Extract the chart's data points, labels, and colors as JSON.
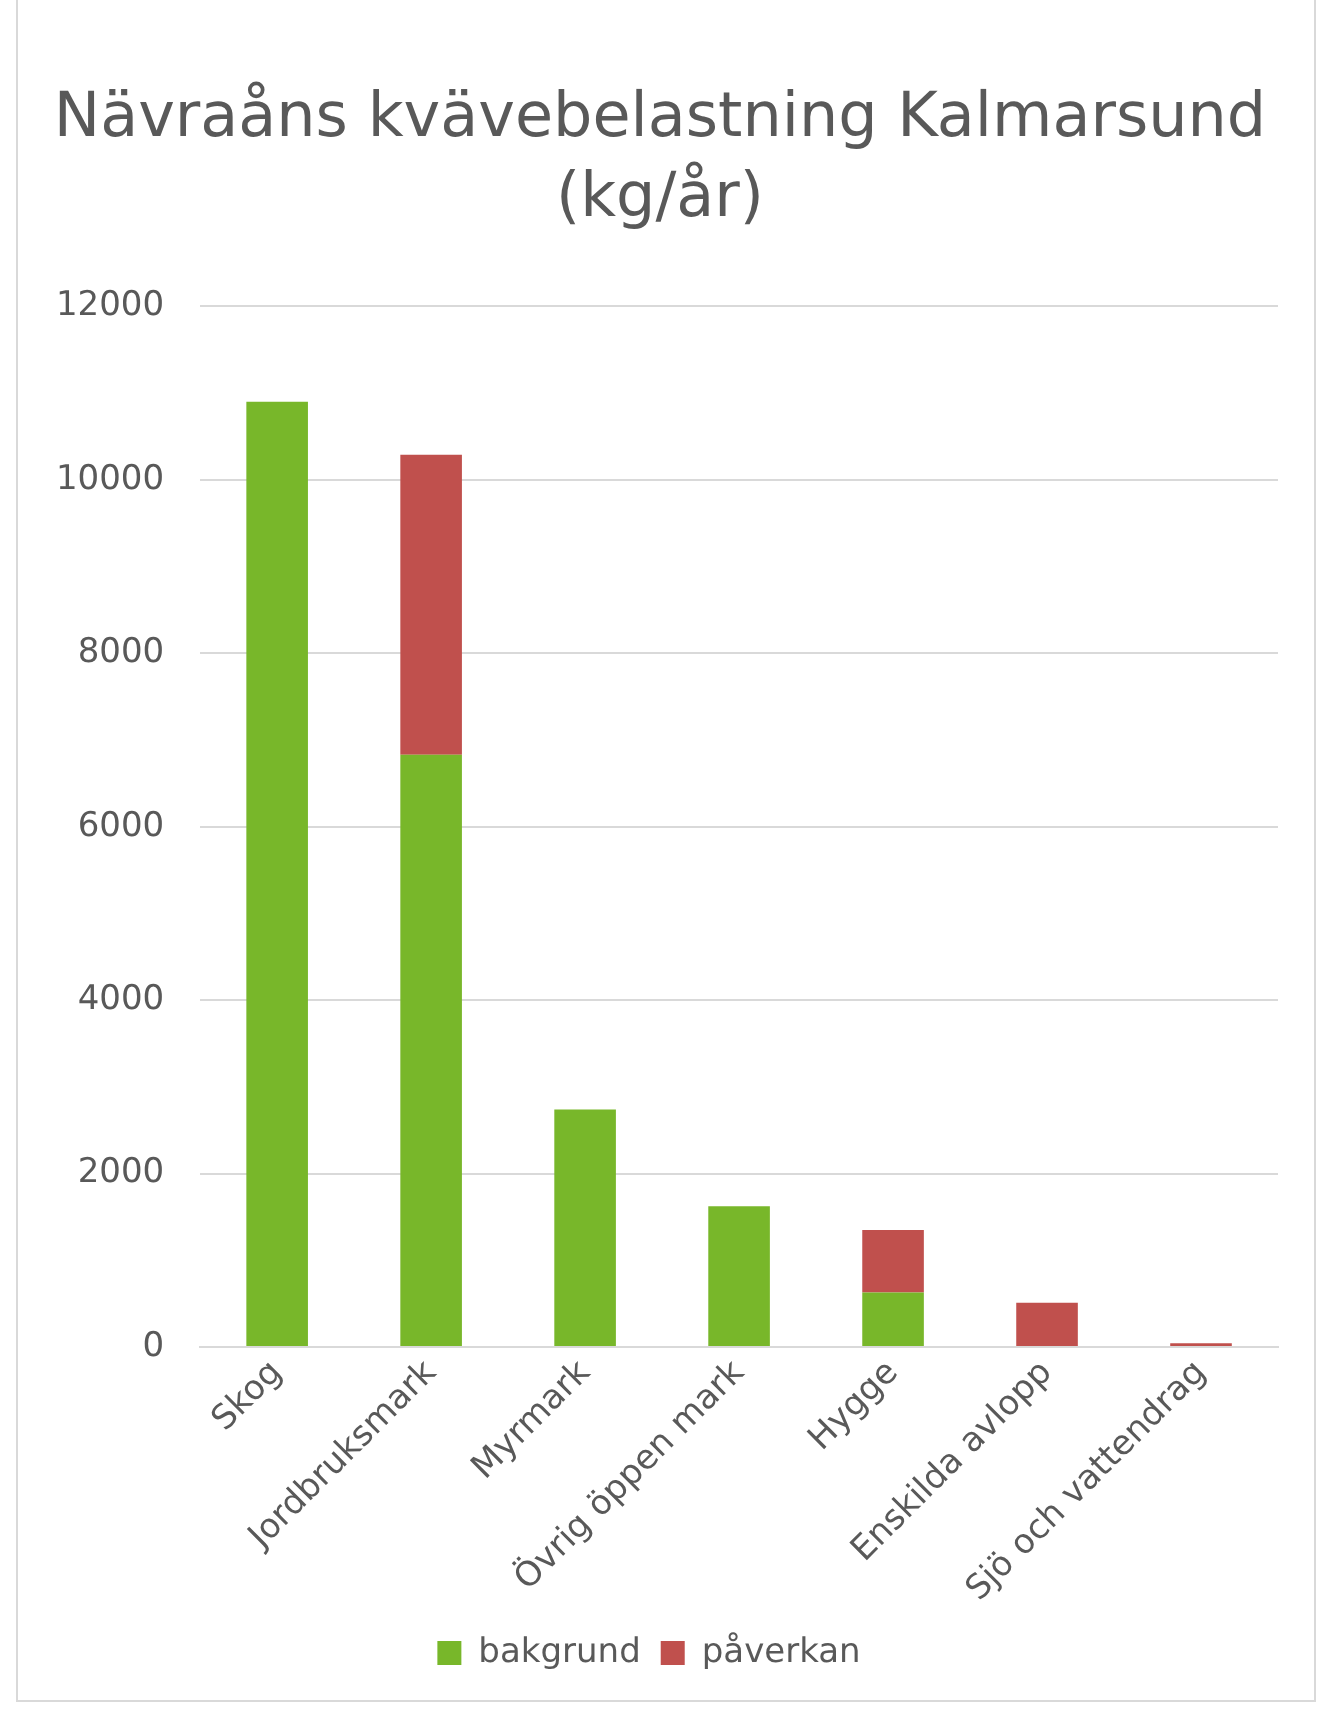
{
  "chart_data": {
    "type": "bar",
    "title": "Nävraåns kvävebelastning Kalmarsund (kg/år)",
    "categories": [
      "Skog",
      "Jordbruksmark",
      "Myrmark",
      "Övrig öppen mark",
      "Hygge",
      "Enskilda avlopp",
      "Sjö och vattendrag"
    ],
    "series": [
      {
        "name": "bakgrund",
        "color": "#78b72a",
        "values": [
          10900,
          6830,
          2740,
          1625,
          630,
          0,
          0
        ]
      },
      {
        "name": "påverkan",
        "color": "#c0504d",
        "values": [
          0,
          3460,
          0,
          0,
          720,
          510,
          45
        ]
      }
    ],
    "stacked": true,
    "ylim": [
      0,
      12000
    ],
    "yticks": [
      0,
      2000,
      4000,
      6000,
      8000,
      10000,
      12000
    ],
    "grid": "y",
    "legend": "bottom"
  }
}
